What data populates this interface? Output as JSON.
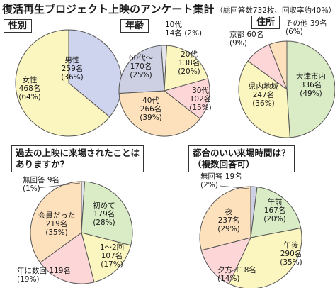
{
  "title": "復活再生プロジェクト上映のアンケート集計",
  "subtitle": "（総回答数732枚、回収率約40％）",
  "chart_data": [
    {
      "type": "pie",
      "id": "gender",
      "title": "性別",
      "slices": [
        {
          "label": "男性",
          "count": "259名",
          "percent": 36,
          "percent_label": "(36%)",
          "color": "#cfd4ee"
        },
        {
          "label": "女性",
          "count": "468名",
          "percent": 64,
          "percent_label": "(64%)",
          "color": "#fbf6bf"
        }
      ]
    },
    {
      "type": "pie",
      "id": "age",
      "title": "年齢",
      "slices": [
        {
          "label": "10代",
          "count": "14名",
          "percent": 2,
          "percent_label": "(2%)",
          "color": "#e3e3ec"
        },
        {
          "label": "20代",
          "count": "138名",
          "percent": 20,
          "percent_label": "(20%)",
          "color": "#fbf6bf"
        },
        {
          "label": "30代",
          "count": "102名",
          "percent": 15,
          "percent_label": "(15%)",
          "color": "#fdd6d8"
        },
        {
          "label": "40代",
          "count": "266名",
          "percent": 39,
          "percent_label": "(39%)",
          "color": "#fde0bc"
        },
        {
          "label": "60代～",
          "count": "170名",
          "percent": 25,
          "percent_label": "(25%)",
          "color": "#cdd0e2"
        }
      ]
    },
    {
      "type": "pie",
      "id": "residence",
      "title": "住所",
      "slices": [
        {
          "label": "大津市内",
          "count": "336名",
          "percent": 49,
          "percent_label": "(49%)",
          "color": "#daecc6"
        },
        {
          "label": "県内地域",
          "count": "247名",
          "percent": 36,
          "percent_label": "(36%)",
          "color": "#fbf6bf"
        },
        {
          "label": "京都",
          "count": "60名",
          "percent": 9,
          "percent_label": "(9%)",
          "color": "#fdd6d8"
        },
        {
          "label": "その他",
          "count": "39名",
          "percent": 6,
          "percent_label": "(6%)",
          "color": "#fde0bc"
        }
      ]
    },
    {
      "type": "pie",
      "id": "past_visits",
      "title_lines": [
        "過去の上映に来場されたことは",
        "ありますか？"
      ],
      "slices": [
        {
          "label": "無回答",
          "count": "9名",
          "percent": 1,
          "percent_label": "(1%)",
          "color": "#e3e3ec"
        },
        {
          "label": "初めて",
          "count": "179名",
          "percent": 28,
          "percent_label": "(28%)",
          "color": "#daecc6"
        },
        {
          "label": "1～2回",
          "count": "107名",
          "percent": 17,
          "percent_label": "(17%)",
          "color": "#fbf6bf"
        },
        {
          "label": "年に数回",
          "count": "119名",
          "percent": 19,
          "percent_label": "(19%)",
          "color": "#fdd6d8"
        },
        {
          "label": "会員だった",
          "count": "219名",
          "percent": 35,
          "percent_label": "(35%)",
          "color": "#fde0bc"
        }
      ]
    },
    {
      "type": "pie",
      "id": "convenient_time",
      "title_lines": [
        "都合のいい来場時間は？",
        "（複数回答可）"
      ],
      "slices": [
        {
          "label": "無回答",
          "count": "19名",
          "percent": 2,
          "percent_label": "(2%)",
          "color": "#cdd0e2"
        },
        {
          "label": "午前",
          "count": "167名",
          "percent": 20,
          "percent_label": "(20%)",
          "color": "#daecc6"
        },
        {
          "label": "午後",
          "count": "290名",
          "percent": 35,
          "percent_label": "(35%)",
          "color": "#fbf6bf"
        },
        {
          "label": "夕方",
          "count": "118名",
          "percent": 14,
          "percent_label": "(14%)",
          "color": "#fdd6d8"
        },
        {
          "label": "夜",
          "count": "237名",
          "percent": 29,
          "percent_label": "(29%)",
          "color": "#fde0bc"
        }
      ]
    }
  ]
}
